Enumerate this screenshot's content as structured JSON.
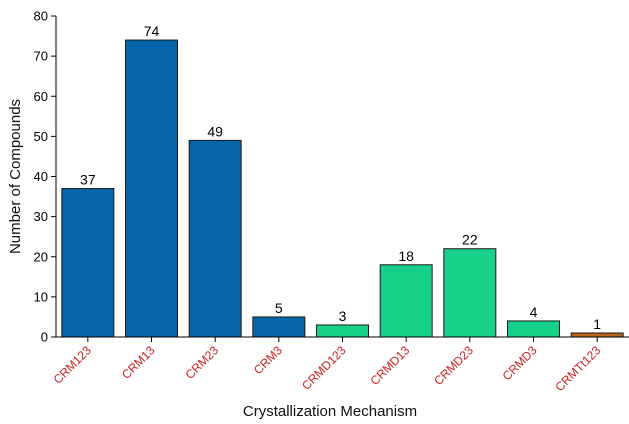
{
  "chart_data": {
    "type": "bar",
    "title": "",
    "xlabel": "Crystallization Mechanism",
    "ylabel": "Number of Compounds",
    "ylim": [
      0,
      80
    ],
    "yticks": [
      0,
      10,
      20,
      30,
      40,
      50,
      60,
      70,
      80
    ],
    "grid": false,
    "categories": [
      "CRM123",
      "CRM13",
      "CRM23",
      "CRM3",
      "CRMD123",
      "CRMD13",
      "CRMD23",
      "CRMD3",
      "CRMTt123"
    ],
    "values": [
      37,
      74,
      49,
      5,
      3,
      18,
      22,
      4,
      1
    ],
    "bar_colors": [
      "#0565a8",
      "#0565a8",
      "#0565a8",
      "#0565a8",
      "#17d08a",
      "#17d08a",
      "#17d08a",
      "#17d08a",
      "#b5651d"
    ],
    "tick_label_color": "#cc1f1f"
  }
}
